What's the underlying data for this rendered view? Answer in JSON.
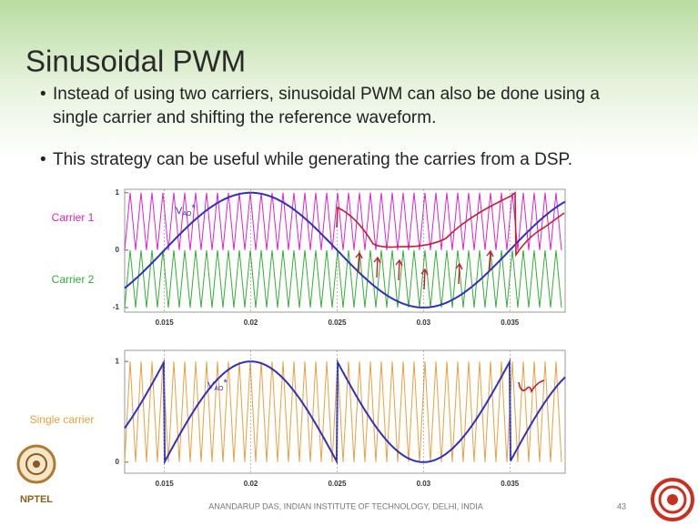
{
  "title": "Sinusoidal PWM",
  "bullets": [
    [
      "Instead of using two carriers, sinusoidal PWM can also be done using a",
      "single carrier and shifting the reference waveform."
    ],
    [
      "This strategy can be useful while generating the carries from a DSP."
    ]
  ],
  "chart_data": [
    {
      "type": "line",
      "series_labels": [
        "Carrier 1",
        "Carrier 2"
      ],
      "colors": [
        "#e020d0",
        "#30b030"
      ],
      "reference_label": {
        "main": "V",
        "sub": "AO",
        "sup": "*"
      },
      "reference_color": "#3030c0",
      "xlim": [
        0.0127,
        0.0382
      ],
      "xticks": [
        0.015,
        0.02,
        0.025,
        0.03,
        0.035
      ],
      "ylim": [
        -1.08,
        1.06
      ],
      "yticks": [
        1,
        0,
        -1
      ],
      "grid": true
    },
    {
      "type": "line",
      "series_labels": [
        "Single carrier"
      ],
      "colors": [
        "#e8a040"
      ],
      "reference_label": {
        "main": "V",
        "sub": "AO",
        "sup": "*"
      },
      "reference_color": "#3030c0",
      "xlim": [
        0.0127,
        0.0382
      ],
      "xticks": [
        0.015,
        0.02,
        0.025,
        0.03,
        0.035
      ],
      "ylim": [
        -0.11,
        1.11
      ],
      "yticks": [
        1,
        0
      ],
      "grid": true
    }
  ],
  "footer": "ANANDARUP DAS, INDIAN INSTITUTE OF TECHNOLOGY, DELHI, INDIA",
  "page_number": "43",
  "logo_text": "NPTEL"
}
